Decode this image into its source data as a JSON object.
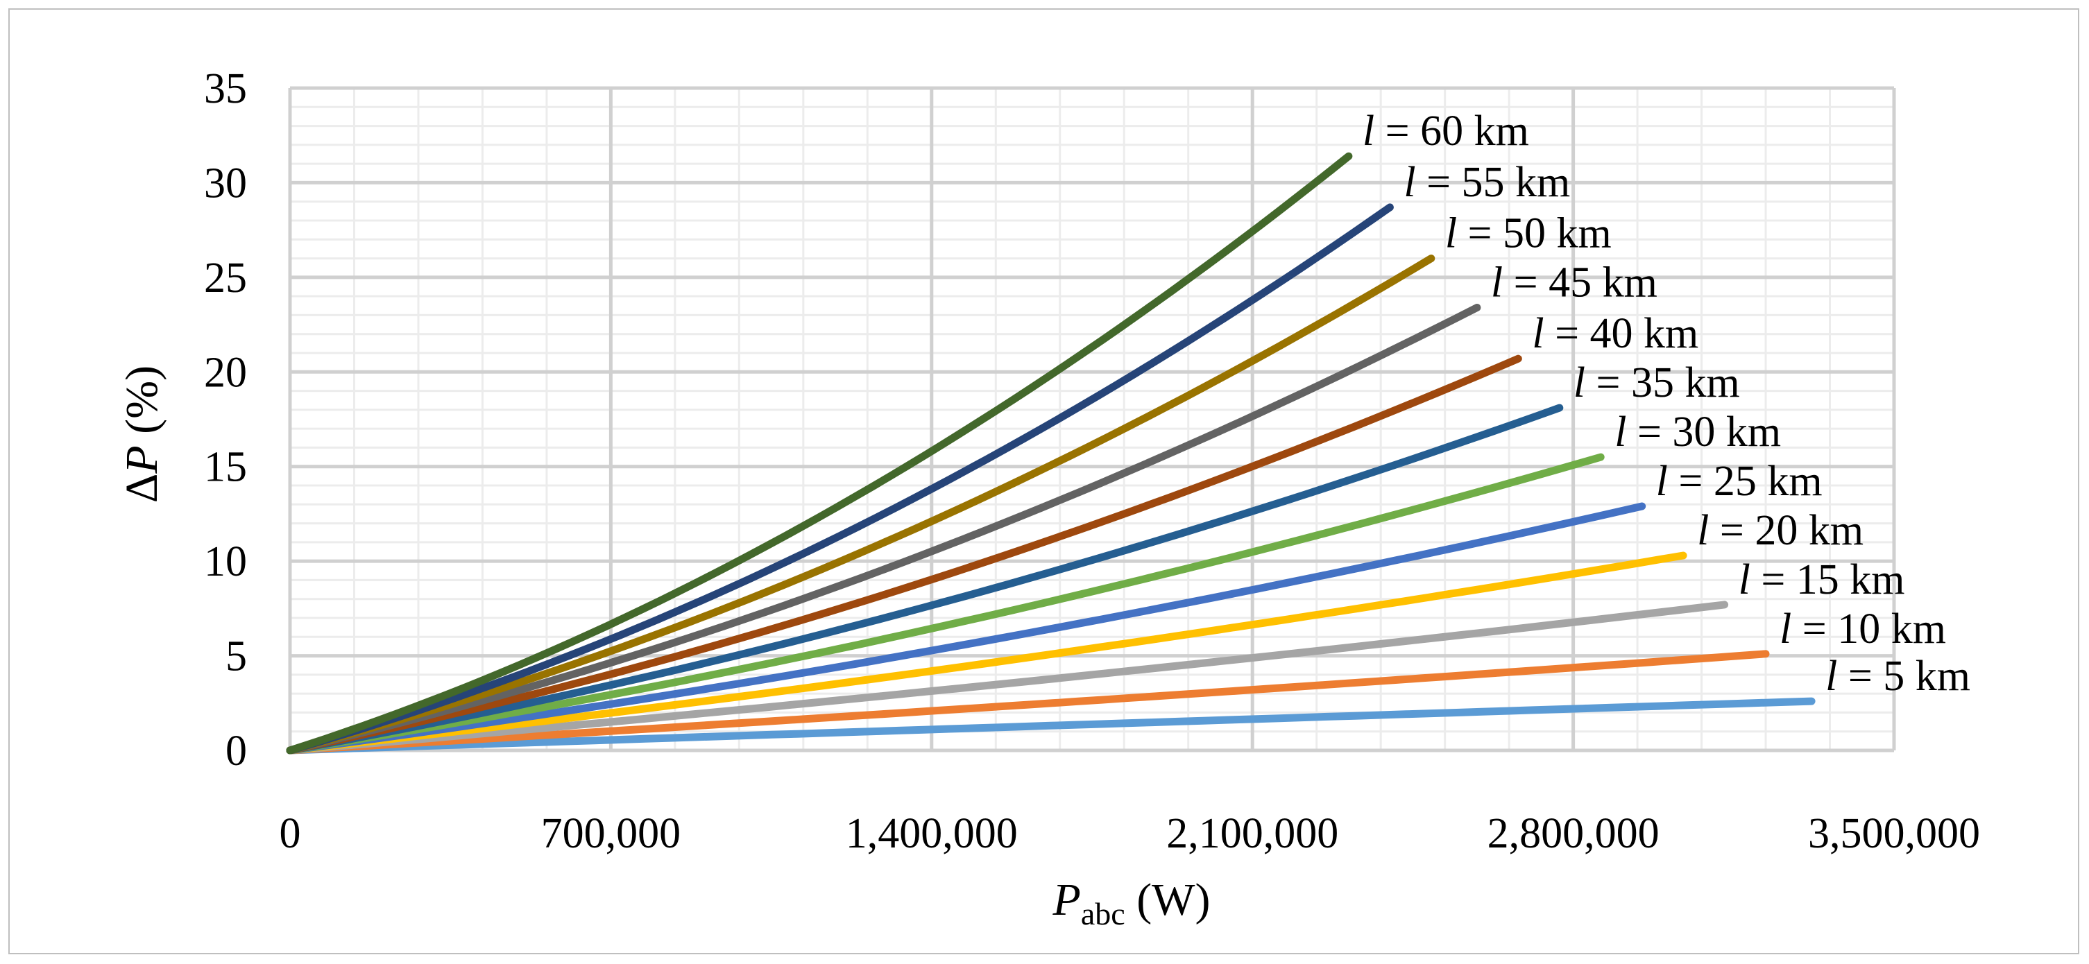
{
  "chart_data": {
    "type": "line",
    "title": "",
    "xlabel": {
      "main": "P",
      "sub": "abc",
      "unit": " (W)"
    },
    "ylabel": {
      "prefix": "Δ",
      "main": "P",
      "unit": " (%)"
    },
    "xlim": [
      0,
      3500000
    ],
    "ylim": [
      0,
      35
    ],
    "x_ticks": [
      0,
      700000,
      1400000,
      2100000,
      2800000,
      3500000
    ],
    "x_tick_labels": [
      "0",
      "700,000",
      "1,400,000",
      "2,100,000",
      "2,800,000",
      "3,500,000"
    ],
    "y_ticks": [
      0,
      5,
      10,
      15,
      20,
      25,
      30,
      35
    ],
    "y_tick_labels": [
      "0",
      "5",
      "10",
      "15",
      "20",
      "25",
      "30",
      "35"
    ],
    "grid": true,
    "series": [
      {
        "name": "l = 5 km",
        "label_var": "l",
        "label_rest": " = 5 km",
        "color": "#5b9bd5",
        "x": [
          0,
          1650000,
          3320000
        ],
        "y": [
          0,
          1.3,
          2.6
        ]
      },
      {
        "name": "l = 10 km",
        "label_var": "l",
        "label_rest": " = 10 km",
        "color": "#ed7d31",
        "x": [
          0,
          1600000,
          3220000
        ],
        "y": [
          0,
          2.4,
          5.1
        ]
      },
      {
        "name": "l = 15 km",
        "label_var": "l",
        "label_rest": " = 15 km",
        "color": "#a5a5a5",
        "x": [
          0,
          1550000,
          3130000
        ],
        "y": [
          0,
          3.5,
          7.7
        ]
      },
      {
        "name": "l = 20 km",
        "label_var": "l",
        "label_rest": " = 20 km",
        "color": "#ffc000",
        "x": [
          0,
          1520000,
          3040000
        ],
        "y": [
          0,
          4.6,
          10.3
        ]
      },
      {
        "name": "l = 25 km",
        "label_var": "l",
        "label_rest": " = 25 km",
        "color": "#4472c4",
        "x": [
          0,
          1475000,
          2950000
        ],
        "y": [
          0,
          5.6,
          12.9
        ]
      },
      {
        "name": "l = 30 km",
        "label_var": "l",
        "label_rest": " = 30 km",
        "color": "#70ad47",
        "x": [
          0,
          1430000,
          2860000
        ],
        "y": [
          0,
          6.6,
          15.5
        ]
      },
      {
        "name": "l = 35 km",
        "label_var": "l",
        "label_rest": " = 35 km",
        "color": "#255e91",
        "x": [
          0,
          1390000,
          2770000
        ],
        "y": [
          0,
          7.6,
          18.1
        ]
      },
      {
        "name": "l = 40 km",
        "label_var": "l",
        "label_rest": " = 40 km",
        "color": "#9e480e",
        "x": [
          0,
          1345000,
          2680000
        ],
        "y": [
          0,
          8.6,
          20.7
        ]
      },
      {
        "name": "l = 45 km",
        "label_var": "l",
        "label_rest": " = 45 km",
        "color": "#636363",
        "x": [
          0,
          1300000,
          2590000
        ],
        "y": [
          0,
          9.6,
          23.4
        ]
      },
      {
        "name": "l = 50 km",
        "label_var": "l",
        "label_rest": " = 50 km",
        "color": "#997300",
        "x": [
          0,
          1250000,
          2490000
        ],
        "y": [
          0,
          10.5,
          26.0
        ]
      },
      {
        "name": "l = 55 km",
        "label_var": "l",
        "label_rest": " = 55 km",
        "color": "#264478",
        "x": [
          0,
          1205000,
          2400000
        ],
        "y": [
          0,
          11.4,
          28.7
        ]
      },
      {
        "name": "l = 60 km",
        "label_var": "l",
        "label_rest": " = 60 km",
        "color": "#43682b",
        "x": [
          0,
          1160000,
          2310000
        ],
        "y": [
          0,
          12.4,
          31.4
        ]
      }
    ]
  }
}
